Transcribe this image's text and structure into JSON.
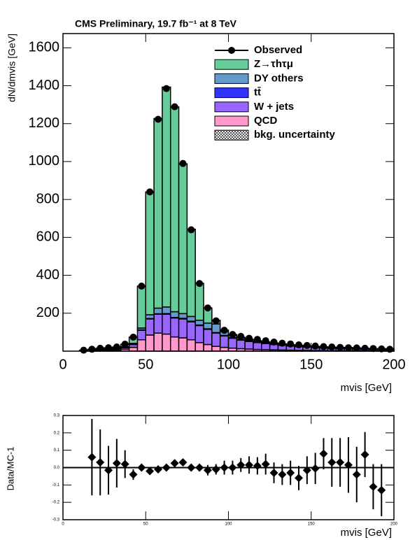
{
  "chart_data": [
    {
      "type": "histogram",
      "title": "CMS Preliminary,  19.7 fb⁻¹ at 8 TeV",
      "y_label": "dN/dmvis [GeV]",
      "x_label": "mvis [GeV]",
      "bins": [
        10,
        15,
        20,
        25,
        30,
        35,
        40,
        45,
        50,
        55,
        60,
        65,
        70,
        75,
        80,
        85,
        90,
        95,
        100,
        105,
        110,
        115,
        120,
        125,
        130,
        135,
        140,
        145,
        150,
        155,
        160,
        165,
        170,
        175,
        180,
        185,
        190,
        195,
        200
      ],
      "series": [
        {
          "name": "Z→τhτμ",
          "color": "#66cc99",
          "values": [
            1,
            4,
            6,
            7,
            6,
            14,
            33,
            221,
            648,
            1000,
            1160,
            1080,
            790,
            460,
            195,
            80,
            20,
            8,
            5,
            4,
            3,
            2,
            2,
            1,
            1,
            1,
            1,
            1,
            1,
            1,
            1,
            1,
            1,
            1,
            1,
            1,
            1,
            1
          ]
        },
        {
          "name": "DY others",
          "color": "#6699cc",
          "values": [
            1,
            1,
            2,
            2,
            3,
            4,
            5,
            10,
            20,
            30,
            35,
            30,
            25,
            25,
            25,
            30,
            45,
            20,
            12,
            8,
            6,
            5,
            4,
            4,
            3,
            3,
            3,
            2,
            2,
            2,
            2,
            2,
            2,
            1,
            1,
            1,
            1,
            1
          ]
        },
        {
          "name": "tt̄",
          "color": "#3333ff",
          "values": [
            0,
            0,
            0,
            0,
            1,
            1,
            1,
            2,
            2,
            2,
            3,
            3,
            3,
            3,
            3,
            3,
            3,
            3,
            3,
            3,
            3,
            3,
            3,
            3,
            3,
            3,
            3,
            3,
            3,
            3,
            3,
            3,
            3,
            3,
            3,
            2,
            2,
            2
          ]
        },
        {
          "name": "W + jets",
          "color": "#9966ff",
          "values": [
            2,
            3,
            4,
            5,
            6,
            8,
            15,
            50,
            85,
            100,
            105,
            100,
            100,
            95,
            90,
            80,
            70,
            60,
            52,
            45,
            40,
            36,
            32,
            28,
            25,
            22,
            20,
            18,
            16,
            14,
            13,
            12,
            11,
            10,
            9,
            8,
            8,
            7
          ]
        },
        {
          "name": "QCD",
          "color": "#ff99cc",
          "values": [
            1,
            2,
            3,
            4,
            6,
            10,
            20,
            60,
            85,
            95,
            90,
            75,
            70,
            60,
            45,
            35,
            25,
            20,
            16,
            13,
            11,
            9,
            8,
            7,
            6,
            5,
            4,
            4,
            3,
            3,
            2,
            2,
            2,
            2,
            1,
            1,
            1,
            1
          ]
        }
      ],
      "observed": {
        "name": "Observed",
        "x": [
          12.5,
          17.5,
          22.5,
          27.5,
          32.5,
          37.5,
          42.5,
          47.5,
          52.5,
          57.5,
          62.5,
          67.5,
          72.5,
          77.5,
          82.5,
          87.5,
          92.5,
          97.5,
          102.5,
          107.5,
          112.5,
          117.5,
          122.5,
          127.5,
          132.5,
          137.5,
          142.5,
          147.5,
          152.5,
          157.5,
          162.5,
          167.5,
          172.5,
          177.5,
          182.5,
          187.5,
          192.5,
          197.5
        ],
        "values": [
          5,
          10,
          15,
          18,
          22,
          37,
          74,
          343,
          840,
          1223,
          1385,
          1289,
          990,
          640,
          357,
          228,
          160,
          110,
          88,
          78,
          68,
          62,
          55,
          48,
          42,
          38,
          33,
          30,
          27,
          24,
          22,
          20,
          18,
          17,
          15,
          14,
          12,
          10
        ]
      },
      "uncertainty_label": "bkg. uncertainty",
      "xlim": [
        0,
        200
      ],
      "xticks": [
        0,
        50,
        100,
        150,
        200
      ],
      "ylim": [
        0,
        1675
      ],
      "yticks": [
        200,
        400,
        600,
        800,
        1000,
        1200,
        1400,
        1600
      ]
    },
    {
      "type": "errorbar",
      "y_label": "Data/MC-1",
      "x_label": "mvis [GeV]",
      "x": [
        17.5,
        22.5,
        27.5,
        32.5,
        37.5,
        42.5,
        47.5,
        52.5,
        57.5,
        62.5,
        67.5,
        72.5,
        77.5,
        82.5,
        87.5,
        92.5,
        97.5,
        102.5,
        107.5,
        112.5,
        117.5,
        122.5,
        127.5,
        132.5,
        137.5,
        142.5,
        147.5,
        152.5,
        157.5,
        162.5,
        167.5,
        172.5,
        177.5,
        182.5,
        187.5,
        192.5
      ],
      "values": [
        0.06,
        0.03,
        -0.015,
        0.025,
        0.02,
        -0.04,
        0.0,
        -0.02,
        -0.01,
        0.0,
        0.025,
        0.03,
        0.0,
        0.0,
        -0.015,
        -0.01,
        0.0,
        0.0,
        0.015,
        0.015,
        0.01,
        0.02,
        -0.03,
        -0.04,
        -0.03,
        -0.06,
        -0.015,
        -0.005,
        0.08,
        0.03,
        0.03,
        0.015,
        -0.04,
        0.075,
        -0.11,
        -0.13
      ],
      "errors": [
        0.22,
        0.19,
        0.14,
        0.14,
        0.08,
        0.03,
        0.02,
        0.015,
        0.015,
        0.015,
        0.015,
        0.02,
        0.02,
        0.02,
        0.03,
        0.03,
        0.04,
        0.04,
        0.04,
        0.05,
        0.05,
        0.06,
        0.06,
        0.06,
        0.07,
        0.07,
        0.08,
        0.09,
        0.09,
        0.14,
        0.14,
        0.16,
        0.16,
        0.13,
        0.13,
        0.15
      ],
      "xlim": [
        0,
        200
      ],
      "xticks": [
        0,
        50,
        100,
        150,
        200
      ],
      "ylim": [
        -0.3,
        0.3
      ],
      "yticks": [
        -0.3,
        -0.2,
        -0.1,
        {
          "value": 0,
          "label": "0.0"
        },
        0.1,
        0.2,
        0.3
      ]
    }
  ]
}
